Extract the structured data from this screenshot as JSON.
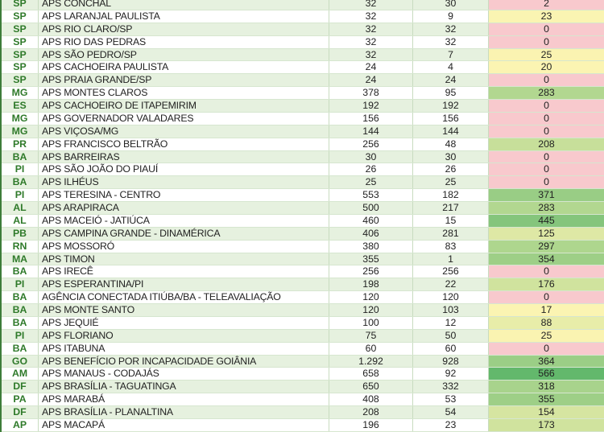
{
  "color_scale": {
    "zero": "#f8c9cd",
    "low": "#fbf4b2",
    "high": "#63b86c",
    "row_alt": "#e6f1df",
    "state_text": "#2f7a2a"
  },
  "rows": [
    {
      "uf": "SP",
      "name": "APS CONCHAL",
      "a": "32",
      "b": "30",
      "c": "2"
    },
    {
      "uf": "SP",
      "name": "APS LARANJAL PAULISTA",
      "a": "32",
      "b": "9",
      "c": "23"
    },
    {
      "uf": "SP",
      "name": "APS RIO CLARO/SP",
      "a": "32",
      "b": "32",
      "c": "0"
    },
    {
      "uf": "SP",
      "name": "APS RIO DAS PEDRAS",
      "a": "32",
      "b": "32",
      "c": "0"
    },
    {
      "uf": "SP",
      "name": "APS SÃO PEDRO/SP",
      "a": "32",
      "b": "7",
      "c": "25"
    },
    {
      "uf": "SP",
      "name": "APS CACHOEIRA PAULISTA",
      "a": "24",
      "b": "4",
      "c": "20"
    },
    {
      "uf": "SP",
      "name": "APS PRAIA GRANDE/SP",
      "a": "24",
      "b": "24",
      "c": "0"
    },
    {
      "uf": "MG",
      "name": "APS MONTES CLAROS",
      "a": "378",
      "b": "95",
      "c": "283"
    },
    {
      "uf": "ES",
      "name": "APS CACHOEIRO DE ITAPEMIRIM",
      "a": "192",
      "b": "192",
      "c": "0"
    },
    {
      "uf": "MG",
      "name": "APS GOVERNADOR VALADARES",
      "a": "156",
      "b": "156",
      "c": "0"
    },
    {
      "uf": "MG",
      "name": "APS VIÇOSA/MG",
      "a": "144",
      "b": "144",
      "c": "0"
    },
    {
      "uf": "PR",
      "name": "APS FRANCISCO BELTRÃO",
      "a": "256",
      "b": "48",
      "c": "208"
    },
    {
      "uf": "BA",
      "name": "APS BARREIRAS",
      "a": "30",
      "b": "30",
      "c": "0"
    },
    {
      "uf": "PI",
      "name": "APS SÃO JOÃO DO PIAUÍ",
      "a": "26",
      "b": "26",
      "c": "0"
    },
    {
      "uf": "BA",
      "name": "APS ILHÉUS",
      "a": "25",
      "b": "25",
      "c": "0"
    },
    {
      "uf": "PI",
      "name": "APS TERESINA - CENTRO",
      "a": "553",
      "b": "182",
      "c": "371"
    },
    {
      "uf": "AL",
      "name": "APS ARAPIRACA",
      "a": "500",
      "b": "217",
      "c": "283"
    },
    {
      "uf": "AL",
      "name": "APS MACEIÓ - JATIÚCA",
      "a": "460",
      "b": "15",
      "c": "445"
    },
    {
      "uf": "PB",
      "name": "APS CAMPINA GRANDE - DINAMÉRICA",
      "a": "406",
      "b": "281",
      "c": "125"
    },
    {
      "uf": "RN",
      "name": "APS MOSSORÓ",
      "a": "380",
      "b": "83",
      "c": "297"
    },
    {
      "uf": "MA",
      "name": "APS TIMON",
      "a": "355",
      "b": "1",
      "c": "354"
    },
    {
      "uf": "BA",
      "name": "APS IRECÊ",
      "a": "256",
      "b": "256",
      "c": "0"
    },
    {
      "uf": "PI",
      "name": "APS ESPERANTINA/PI",
      "a": "198",
      "b": "22",
      "c": "176"
    },
    {
      "uf": "BA",
      "name": "AGÊNCIA CONECTADA ITIÚBA/BA - TELEAVALIAÇÃO",
      "a": "120",
      "b": "120",
      "c": "0"
    },
    {
      "uf": "BA",
      "name": "APS MONTE SANTO",
      "a": "120",
      "b": "103",
      "c": "17"
    },
    {
      "uf": "BA",
      "name": "APS JEQUIÉ",
      "a": "100",
      "b": "12",
      "c": "88"
    },
    {
      "uf": "PI",
      "name": "APS FLORIANO",
      "a": "75",
      "b": "50",
      "c": "25"
    },
    {
      "uf": "BA",
      "name": "APS ITABUNA",
      "a": "60",
      "b": "60",
      "c": "0"
    },
    {
      "uf": "GO",
      "name": "APS BENEFÍCIO POR INCAPACIDADE GOIÂNIA",
      "a": "1.292",
      "b": "928",
      "c": "364"
    },
    {
      "uf": "AM",
      "name": "APS MANAUS - CODAJÁS",
      "a": "658",
      "b": "92",
      "c": "566"
    },
    {
      "uf": "DF",
      "name": "APS BRASÍLIA - TAGUATINGA",
      "a": "650",
      "b": "332",
      "c": "318"
    },
    {
      "uf": "PA",
      "name": "APS MARABÁ",
      "a": "408",
      "b": "53",
      "c": "355"
    },
    {
      "uf": "DF",
      "name": "APS BRASÍLIA - PLANALTINA",
      "a": "208",
      "b": "54",
      "c": "154"
    },
    {
      "uf": "AP",
      "name": "APS MACAPÁ",
      "a": "196",
      "b": "23",
      "c": "173"
    }
  ]
}
